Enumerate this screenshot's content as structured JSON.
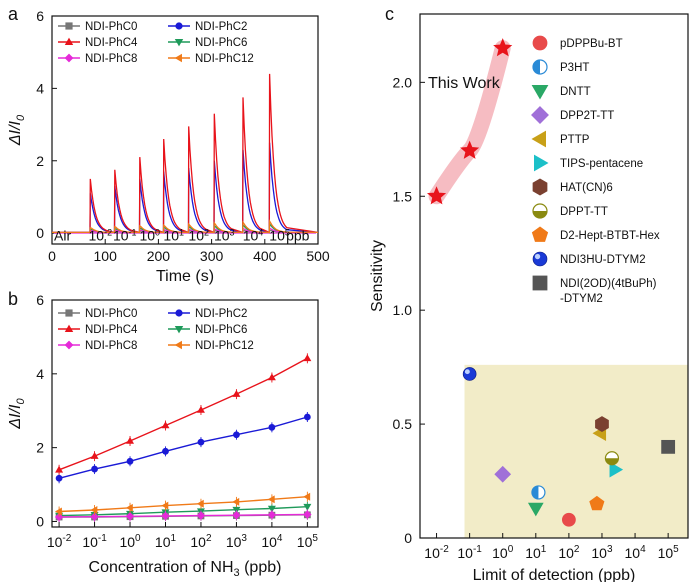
{
  "chart_data": [
    {
      "panel": "a",
      "type": "line",
      "xlabel": "Time (s)",
      "ylabel": "ΔI/I0",
      "xlim": [
        0,
        500
      ],
      "ylim": [
        -0.3,
        6
      ],
      "xticks": [
        0,
        100,
        200,
        300,
        400,
        500
      ],
      "yticks": [
        0,
        2,
        4,
        6
      ],
      "legend": [
        "NDI-PhC0",
        "NDI-PhC2",
        "NDI-PhC4",
        "NDI-PhC6",
        "NDI-PhC8",
        "NDI-PhC12"
      ],
      "annotation_prefix": "Air",
      "annotation_suffix": "ppb",
      "pulse_labels": [
        "10-2",
        "10-1",
        "100",
        "101",
        "102",
        "103",
        "104",
        "105"
      ],
      "pulse_times": [
        72,
        118,
        165,
        210,
        257,
        305,
        359,
        409
      ],
      "series": [
        {
          "name": "NDI-PhC0",
          "color": "#777777",
          "marker": "square",
          "peaks": [
            0.05,
            0.05,
            0.05,
            0.05,
            0.06,
            0.06,
            0.06,
            0.07
          ]
        },
        {
          "name": "NDI-PhC2",
          "color": "#1a1ad6",
          "marker": "circle",
          "peaks": [
            1.1,
            1.3,
            1.5,
            1.7,
            1.8,
            2.0,
            2.3,
            2.5
          ]
        },
        {
          "name": "NDI-PhC4",
          "color": "#e8131b",
          "marker": "triangle-up",
          "peaks": [
            1.5,
            1.75,
            2.1,
            2.6,
            2.95,
            3.3,
            3.75,
            4.4
          ]
        },
        {
          "name": "NDI-PhC6",
          "color": "#1f9a5a",
          "marker": "triangle-down",
          "peaks": [
            0.1,
            0.12,
            0.14,
            0.16,
            0.18,
            0.2,
            0.22,
            0.25
          ]
        },
        {
          "name": "NDI-PhC8",
          "color": "#e52ad8",
          "marker": "diamond",
          "peaks": [
            0.06,
            0.07,
            0.08,
            0.09,
            0.1,
            0.11,
            0.12,
            0.13
          ]
        },
        {
          "name": "NDI-PhC12",
          "color": "#f07a18",
          "marker": "triangle-left",
          "peaks": [
            0.15,
            0.18,
            0.2,
            0.22,
            0.25,
            0.28,
            0.3,
            0.33
          ]
        }
      ]
    },
    {
      "panel": "b",
      "type": "scatter",
      "xlabel": "Concentration of NH",
      "xlabel_sub": "3",
      "xlabel_suffix": " (ppb)",
      "ylabel": "ΔI/I0",
      "xscale": "log",
      "xlim_exp": [
        -2.2,
        5.3
      ],
      "ylim": [
        -0.15,
        6
      ],
      "yticks": [
        0,
        2,
        4,
        6
      ],
      "xticks_exp": [
        "-2",
        "-1",
        "0",
        "1",
        "2",
        "3",
        "4",
        "5"
      ],
      "x": [
        0.01,
        0.1,
        1,
        10,
        100,
        1000,
        10000,
        100000
      ],
      "legend": [
        "NDI-PhC0",
        "NDI-PhC2",
        "NDI-PhC4",
        "NDI-PhC6",
        "NDI-PhC8",
        "NDI-PhC12"
      ],
      "series": [
        {
          "name": "NDI-PhC0",
          "color": "#777777",
          "marker": "square",
          "values": [
            0.12,
            0.12,
            0.13,
            0.14,
            0.15,
            0.16,
            0.17,
            0.18
          ]
        },
        {
          "name": "NDI-PhC2",
          "color": "#1a1ad6",
          "marker": "circle",
          "values": [
            1.17,
            1.42,
            1.63,
            1.9,
            2.15,
            2.35,
            2.55,
            2.83
          ]
        },
        {
          "name": "NDI-PhC4",
          "color": "#e8131b",
          "marker": "triangle-up",
          "values": [
            1.4,
            1.77,
            2.18,
            2.6,
            3.02,
            3.45,
            3.9,
            4.42
          ]
        },
        {
          "name": "NDI-PhC6",
          "color": "#1f9a5a",
          "marker": "triangle-down",
          "values": [
            0.16,
            0.18,
            0.21,
            0.25,
            0.28,
            0.32,
            0.35,
            0.4
          ]
        },
        {
          "name": "NDI-PhC8",
          "color": "#e52ad8",
          "marker": "diamond",
          "values": [
            0.12,
            0.13,
            0.14,
            0.15,
            0.16,
            0.17,
            0.18,
            0.19
          ]
        },
        {
          "name": "NDI-PhC12",
          "color": "#f07a18",
          "marker": "triangle-left",
          "values": [
            0.27,
            0.31,
            0.37,
            0.43,
            0.48,
            0.53,
            0.6,
            0.67
          ]
        }
      ]
    },
    {
      "panel": "c",
      "type": "scatter",
      "xlabel": "Limit of detection (ppb)",
      "ylabel": "Sensitivity",
      "xscale": "log",
      "xlim_exp": [
        -2.5,
        5.6
      ],
      "ylim": [
        0,
        2.3
      ],
      "yticks": [
        0,
        0.5,
        1.0,
        1.5,
        2.0
      ],
      "ytick_labels": [
        "0",
        "0.5",
        "1.0",
        "1.5",
        "2.0"
      ],
      "xticks_exp": [
        "-2",
        "-1",
        "0",
        "1",
        "2",
        "3",
        "4",
        "5"
      ],
      "this_work_label": "This Work",
      "this_work": [
        {
          "x": 0.01,
          "y": 1.5
        },
        {
          "x": 0.1,
          "y": 1.7
        },
        {
          "x": 1,
          "y": 2.15
        }
      ],
      "shaded_region": {
        "x_from": 0.07,
        "x_to": 200000,
        "y_from": 0,
        "y_to": 0.76,
        "color": "#f2ecc8"
      },
      "points": [
        {
          "name": "pDPPBu-BT",
          "x": 100,
          "y": 0.08,
          "color": "#e84a4a",
          "marker": "circle"
        },
        {
          "name": "P3HT",
          "x": 12,
          "y": 0.2,
          "color": "#2a8ad6",
          "marker": "half-circle"
        },
        {
          "name": "DNTT",
          "x": 10,
          "y": 0.13,
          "color": "#2aa866",
          "marker": "triangle-down"
        },
        {
          "name": "DPP2T-TT",
          "x": 1,
          "y": 0.28,
          "color": "#a070d8",
          "marker": "diamond"
        },
        {
          "name": "PTTP",
          "x": 900,
          "y": 0.46,
          "color": "#c8a018",
          "marker": "triangle-left"
        },
        {
          "name": "TIPS-pentacene",
          "x": 2500,
          "y": 0.3,
          "color": "#1cc0c8",
          "marker": "triangle-right"
        },
        {
          "name": "HAT(CN)6",
          "x": 1000,
          "y": 0.5,
          "color": "#7a4030",
          "marker": "hexagon"
        },
        {
          "name": "DPPT-TT",
          "x": 2000,
          "y": 0.35,
          "color": "#8a8a10",
          "marker": "half-circle-h"
        },
        {
          "name": "D2-Hept-BTBT-Hex",
          "x": 700,
          "y": 0.15,
          "color": "#f07a18",
          "marker": "pentagon"
        },
        {
          "name": "NDI3HU-DTYM2",
          "x": 0.1,
          "y": 0.72,
          "color": "#1a3ad6",
          "marker": "sphere"
        },
        {
          "name": "NDI(2OD)(4tBuPh)-DTYM2",
          "x": 100000,
          "y": 0.4,
          "color": "#555555",
          "marker": "square"
        }
      ],
      "legend": [
        {
          "label": "pDPPBu-BT"
        },
        {
          "label": "P3HT"
        },
        {
          "label": "DNTT"
        },
        {
          "label": "DPP2T-TT"
        },
        {
          "label": "PTTP"
        },
        {
          "label": "TIPS-pentacene"
        },
        {
          "label": "HAT(CN)6"
        },
        {
          "label": "DPPT-TT"
        },
        {
          "label": "D2-Hept-BTBT-Hex"
        },
        {
          "label": "NDI3HU-DTYM2"
        },
        {
          "label": "NDI(2OD)(4tBuPh)",
          "label2": "-DTYM2"
        }
      ]
    }
  ],
  "panel_letters": {
    "a": "a",
    "b": "b",
    "c": "c"
  }
}
